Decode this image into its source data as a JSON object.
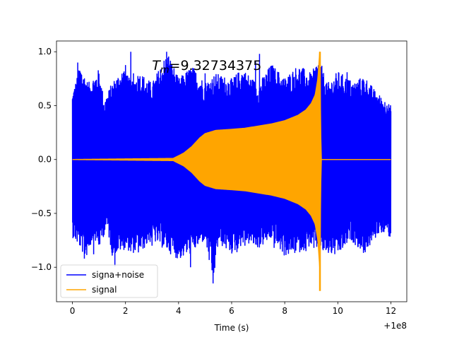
{
  "chart_data": {
    "type": "line",
    "xlabel": "Time (s)",
    "ylabel": "",
    "xlim": [
      -0.6,
      12.6
    ],
    "ylim": [
      -1.32,
      1.1
    ],
    "x_offset_label": "+1e8",
    "annotation": {
      "prefix": "T",
      "subscript": "m",
      "text": "=9.32734375",
      "x": 3.0,
      "y": 0.83
    },
    "x_ticks": [
      {
        "value": 0,
        "label": "0"
      },
      {
        "value": 2,
        "label": "2"
      },
      {
        "value": 4,
        "label": "4"
      },
      {
        "value": 6,
        "label": "6"
      },
      {
        "value": 8,
        "label": "8"
      },
      {
        "value": 10,
        "label": "10"
      },
      {
        "value": 12,
        "label": "12"
      }
    ],
    "y_ticks": [
      {
        "value": -1.0,
        "label": "−1.0"
      },
      {
        "value": -0.5,
        "label": "−0.5"
      },
      {
        "value": 0.0,
        "label": "0.0"
      },
      {
        "value": 0.5,
        "label": "0.5"
      },
      {
        "value": 1.0,
        "label": "1.0"
      }
    ],
    "legend": {
      "placement": "lower-left",
      "entries": [
        {
          "label": "signa+noise",
          "color": "#0000ff"
        },
        {
          "label": "signal",
          "color": "#ffa500"
        }
      ]
    },
    "series": [
      {
        "name": "signa+noise",
        "color": "#0000ff",
        "x": [
          0,
          12
        ],
        "upper_envelope": [
          [
            0.0,
            0.62
          ],
          [
            0.3,
            0.88
          ],
          [
            0.6,
            0.71
          ],
          [
            1.0,
            0.84
          ],
          [
            1.2,
            0.55
          ],
          [
            1.5,
            0.72
          ],
          [
            2.0,
            0.88
          ],
          [
            2.2,
            0.7
          ],
          [
            2.5,
            0.82
          ],
          [
            3.0,
            0.71
          ],
          [
            3.5,
            0.96
          ],
          [
            3.6,
            1.0
          ],
          [
            4.0,
            0.75
          ],
          [
            4.5,
            0.87
          ],
          [
            5.0,
            0.72
          ],
          [
            5.4,
            0.8
          ],
          [
            6.0,
            0.75
          ],
          [
            6.4,
            0.85
          ],
          [
            7.0,
            0.7
          ],
          [
            7.5,
            0.89
          ],
          [
            8.0,
            0.76
          ],
          [
            8.5,
            0.88
          ],
          [
            9.0,
            0.8
          ],
          [
            9.3,
            0.95
          ],
          [
            9.6,
            0.7
          ],
          [
            10.0,
            0.82
          ],
          [
            10.6,
            0.72
          ],
          [
            11.0,
            0.78
          ],
          [
            11.4,
            0.64
          ],
          [
            12.0,
            0.5
          ]
        ],
        "lower_envelope": [
          [
            0.0,
            -0.72
          ],
          [
            0.3,
            -0.83
          ],
          [
            0.5,
            -0.92
          ],
          [
            0.8,
            -0.73
          ],
          [
            1.0,
            -0.83
          ],
          [
            1.3,
            -0.63
          ],
          [
            1.5,
            -0.89
          ],
          [
            2.0,
            -0.83
          ],
          [
            2.2,
            -0.86
          ],
          [
            2.5,
            -0.88
          ],
          [
            3.0,
            -0.75
          ],
          [
            3.5,
            -0.84
          ],
          [
            4.0,
            -0.93
          ],
          [
            4.5,
            -0.87
          ],
          [
            5.0,
            -0.75
          ],
          [
            5.3,
            -1.16
          ],
          [
            5.5,
            -0.78
          ],
          [
            6.0,
            -0.88
          ],
          [
            6.5,
            -0.77
          ],
          [
            7.0,
            -0.83
          ],
          [
            7.5,
            -0.74
          ],
          [
            8.0,
            -0.9
          ],
          [
            8.5,
            -0.87
          ],
          [
            9.0,
            -0.8
          ],
          [
            9.5,
            -0.88
          ],
          [
            10.0,
            -0.9
          ],
          [
            10.5,
            -0.75
          ],
          [
            11.0,
            -0.88
          ],
          [
            11.6,
            -0.67
          ],
          [
            12.0,
            -0.73
          ]
        ],
        "spikes": [
          [
            0.05,
            0.62
          ],
          [
            0.2,
            0.9
          ],
          [
            0.4,
            -0.7
          ],
          [
            0.45,
            -0.92
          ],
          [
            0.8,
            -0.88
          ],
          [
            0.9,
            0.6
          ],
          [
            1.2,
            -0.6
          ],
          [
            1.6,
            -0.99
          ],
          [
            1.9,
            -0.8
          ],
          [
            2.2,
            -0.85
          ],
          [
            2.2,
            1.0
          ],
          [
            2.3,
            0.8
          ],
          [
            2.6,
            -0.73
          ],
          [
            2.8,
            -0.6
          ],
          [
            3.0,
            -0.8
          ],
          [
            3.4,
            -0.72
          ],
          [
            3.55,
            1.0
          ],
          [
            3.6,
            -0.75
          ],
          [
            3.7,
            -0.6
          ],
          [
            4.2,
            -0.8
          ],
          [
            4.45,
            -1.0
          ],
          [
            4.6,
            0.7
          ],
          [
            5.0,
            0.8
          ],
          [
            5.3,
            -1.15
          ],
          [
            5.9,
            0.7
          ],
          [
            6.2,
            -0.86
          ],
          [
            6.5,
            -0.8
          ],
          [
            6.9,
            0.92
          ],
          [
            7.05,
            0.98
          ],
          [
            7.6,
            -0.82
          ],
          [
            8.3,
            0.78
          ],
          [
            8.8,
            -0.85
          ],
          [
            9.1,
            -0.82
          ],
          [
            9.33,
            0.95
          ],
          [
            9.6,
            -0.82
          ],
          [
            9.9,
            0.68
          ],
          [
            10.2,
            0.68
          ],
          [
            10.35,
            0.81
          ],
          [
            10.6,
            -0.6
          ],
          [
            11.0,
            -0.82
          ],
          [
            11.2,
            -0.75
          ],
          [
            11.4,
            -0.65
          ],
          [
            11.7,
            -0.67
          ],
          [
            11.85,
            0.5
          ]
        ]
      },
      {
        "name": "signal",
        "color": "#ffa500",
        "x": [
          0,
          12
        ],
        "peak_time": 9.32734375,
        "envelope": [
          [
            0.0,
            0.0
          ],
          [
            3.8,
            0.01
          ],
          [
            4.2,
            0.06
          ],
          [
            4.5,
            0.12
          ],
          [
            4.8,
            0.2
          ],
          [
            5.0,
            0.24
          ],
          [
            5.4,
            0.27
          ],
          [
            6.0,
            0.28
          ],
          [
            6.5,
            0.29
          ],
          [
            7.0,
            0.31
          ],
          [
            7.5,
            0.33
          ],
          [
            8.0,
            0.36
          ],
          [
            8.5,
            0.41
          ],
          [
            8.8,
            0.46
          ],
          [
            9.0,
            0.52
          ],
          [
            9.15,
            0.6
          ],
          [
            9.25,
            0.75
          ],
          [
            9.32,
            1.0
          ],
          [
            9.37,
            0.0
          ],
          [
            12.0,
            0.0
          ]
        ],
        "min": -1.22,
        "max": 1.0
      }
    ]
  }
}
